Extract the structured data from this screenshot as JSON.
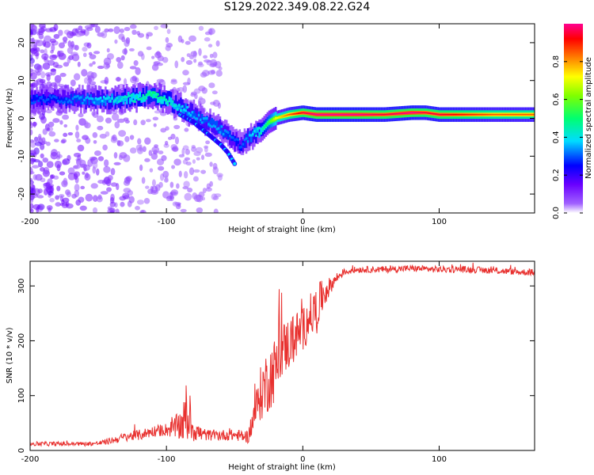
{
  "title": "S129.2022.349.08.22.G24",
  "chart_data": [
    {
      "type": "heatmap",
      "xlabel": "Height of straight line (km)",
      "ylabel": "Frequency (Hz)",
      "xlim": [
        -200,
        170
      ],
      "ylim": [
        -25,
        25
      ],
      "xticks": [
        -200,
        -100,
        0,
        100
      ],
      "yticks": [
        -20,
        -10,
        0,
        10,
        20
      ],
      "colorbar": {
        "label": "Normalized spectral amplitude",
        "range": [
          0,
          1
        ],
        "ticks": [
          0.0,
          0.2,
          0.4,
          0.6,
          0.8
        ],
        "tick_labels": [
          "0.0",
          "0.2",
          "0.4",
          "0.6",
          "0.8"
        ]
      },
      "ridge": {
        "x": [
          -200,
          -180,
          -160,
          -140,
          -120,
          -110,
          -100,
          -90,
          -80,
          -70,
          -60,
          -50,
          -45,
          -40,
          -35,
          -30,
          -25,
          -20,
          -10,
          0,
          10,
          20,
          40,
          60,
          80,
          90,
          100,
          120,
          140,
          170
        ],
        "y": [
          5,
          5,
          5,
          5,
          5.5,
          6,
          5,
          3,
          1,
          -1,
          -3,
          -6,
          -7,
          -5,
          -4,
          -3,
          -1,
          0,
          1,
          1.5,
          1,
          1,
          1,
          1,
          1.5,
          1.5,
          1,
          1,
          1,
          1
        ],
        "peak_amplitude": [
          0.3,
          0.3,
          0.35,
          0.4,
          0.45,
          0.5,
          0.45,
          0.4,
          0.35,
          0.35,
          0.35,
          0.3,
          0.3,
          0.35,
          0.4,
          0.45,
          0.55,
          0.7,
          0.85,
          0.95,
          1.0,
          1.0,
          1.0,
          0.95,
          1.0,
          0.95,
          0.95,
          0.9,
          0.85,
          0.85
        ]
      },
      "secondary_branch": {
        "x": [
          -90,
          -80,
          -70,
          -60,
          -55,
          -50
        ],
        "y": [
          1,
          -1,
          -4,
          -7,
          -9,
          -12
        ]
      }
    },
    {
      "type": "line",
      "xlabel": "Height of straight line (km)",
      "ylabel": "SNR (10 * v/v)",
      "xlim": [
        -200,
        170
      ],
      "ylim": [
        0,
        345
      ],
      "xticks": [
        -200,
        -100,
        0,
        100
      ],
      "yticks": [
        0,
        100,
        200,
        300
      ],
      "series": [
        {
          "color": "#e8312f",
          "x": [
            -200,
            -180,
            -160,
            -150,
            -140,
            -130,
            -120,
            -110,
            -100,
            -95,
            -90,
            -85,
            -80,
            -75,
            -70,
            -60,
            -50,
            -40,
            -35,
            -30,
            -25,
            -20,
            -15,
            -10,
            -5,
            0,
            5,
            10,
            15,
            20,
            25,
            30,
            40,
            60,
            80,
            100,
            120,
            140,
            160,
            170
          ],
          "y": [
            12,
            12,
            12,
            13,
            18,
            25,
            28,
            35,
            38,
            40,
            45,
            60,
            40,
            30,
            28,
            28,
            28,
            25,
            70,
            110,
            130,
            150,
            185,
            195,
            210,
            220,
            245,
            255,
            285,
            300,
            315,
            325,
            330,
            330,
            332,
            330,
            330,
            328,
            325,
            325
          ],
          "noise": [
            4,
            4,
            4,
            4,
            6,
            8,
            10,
            10,
            12,
            18,
            30,
            45,
            25,
            15,
            10,
            10,
            10,
            12,
            30,
            55,
            60,
            60,
            50,
            50,
            45,
            40,
            40,
            45,
            30,
            15,
            10,
            6,
            6,
            6,
            6,
            6,
            6,
            6,
            6,
            6
          ]
        }
      ]
    }
  ]
}
